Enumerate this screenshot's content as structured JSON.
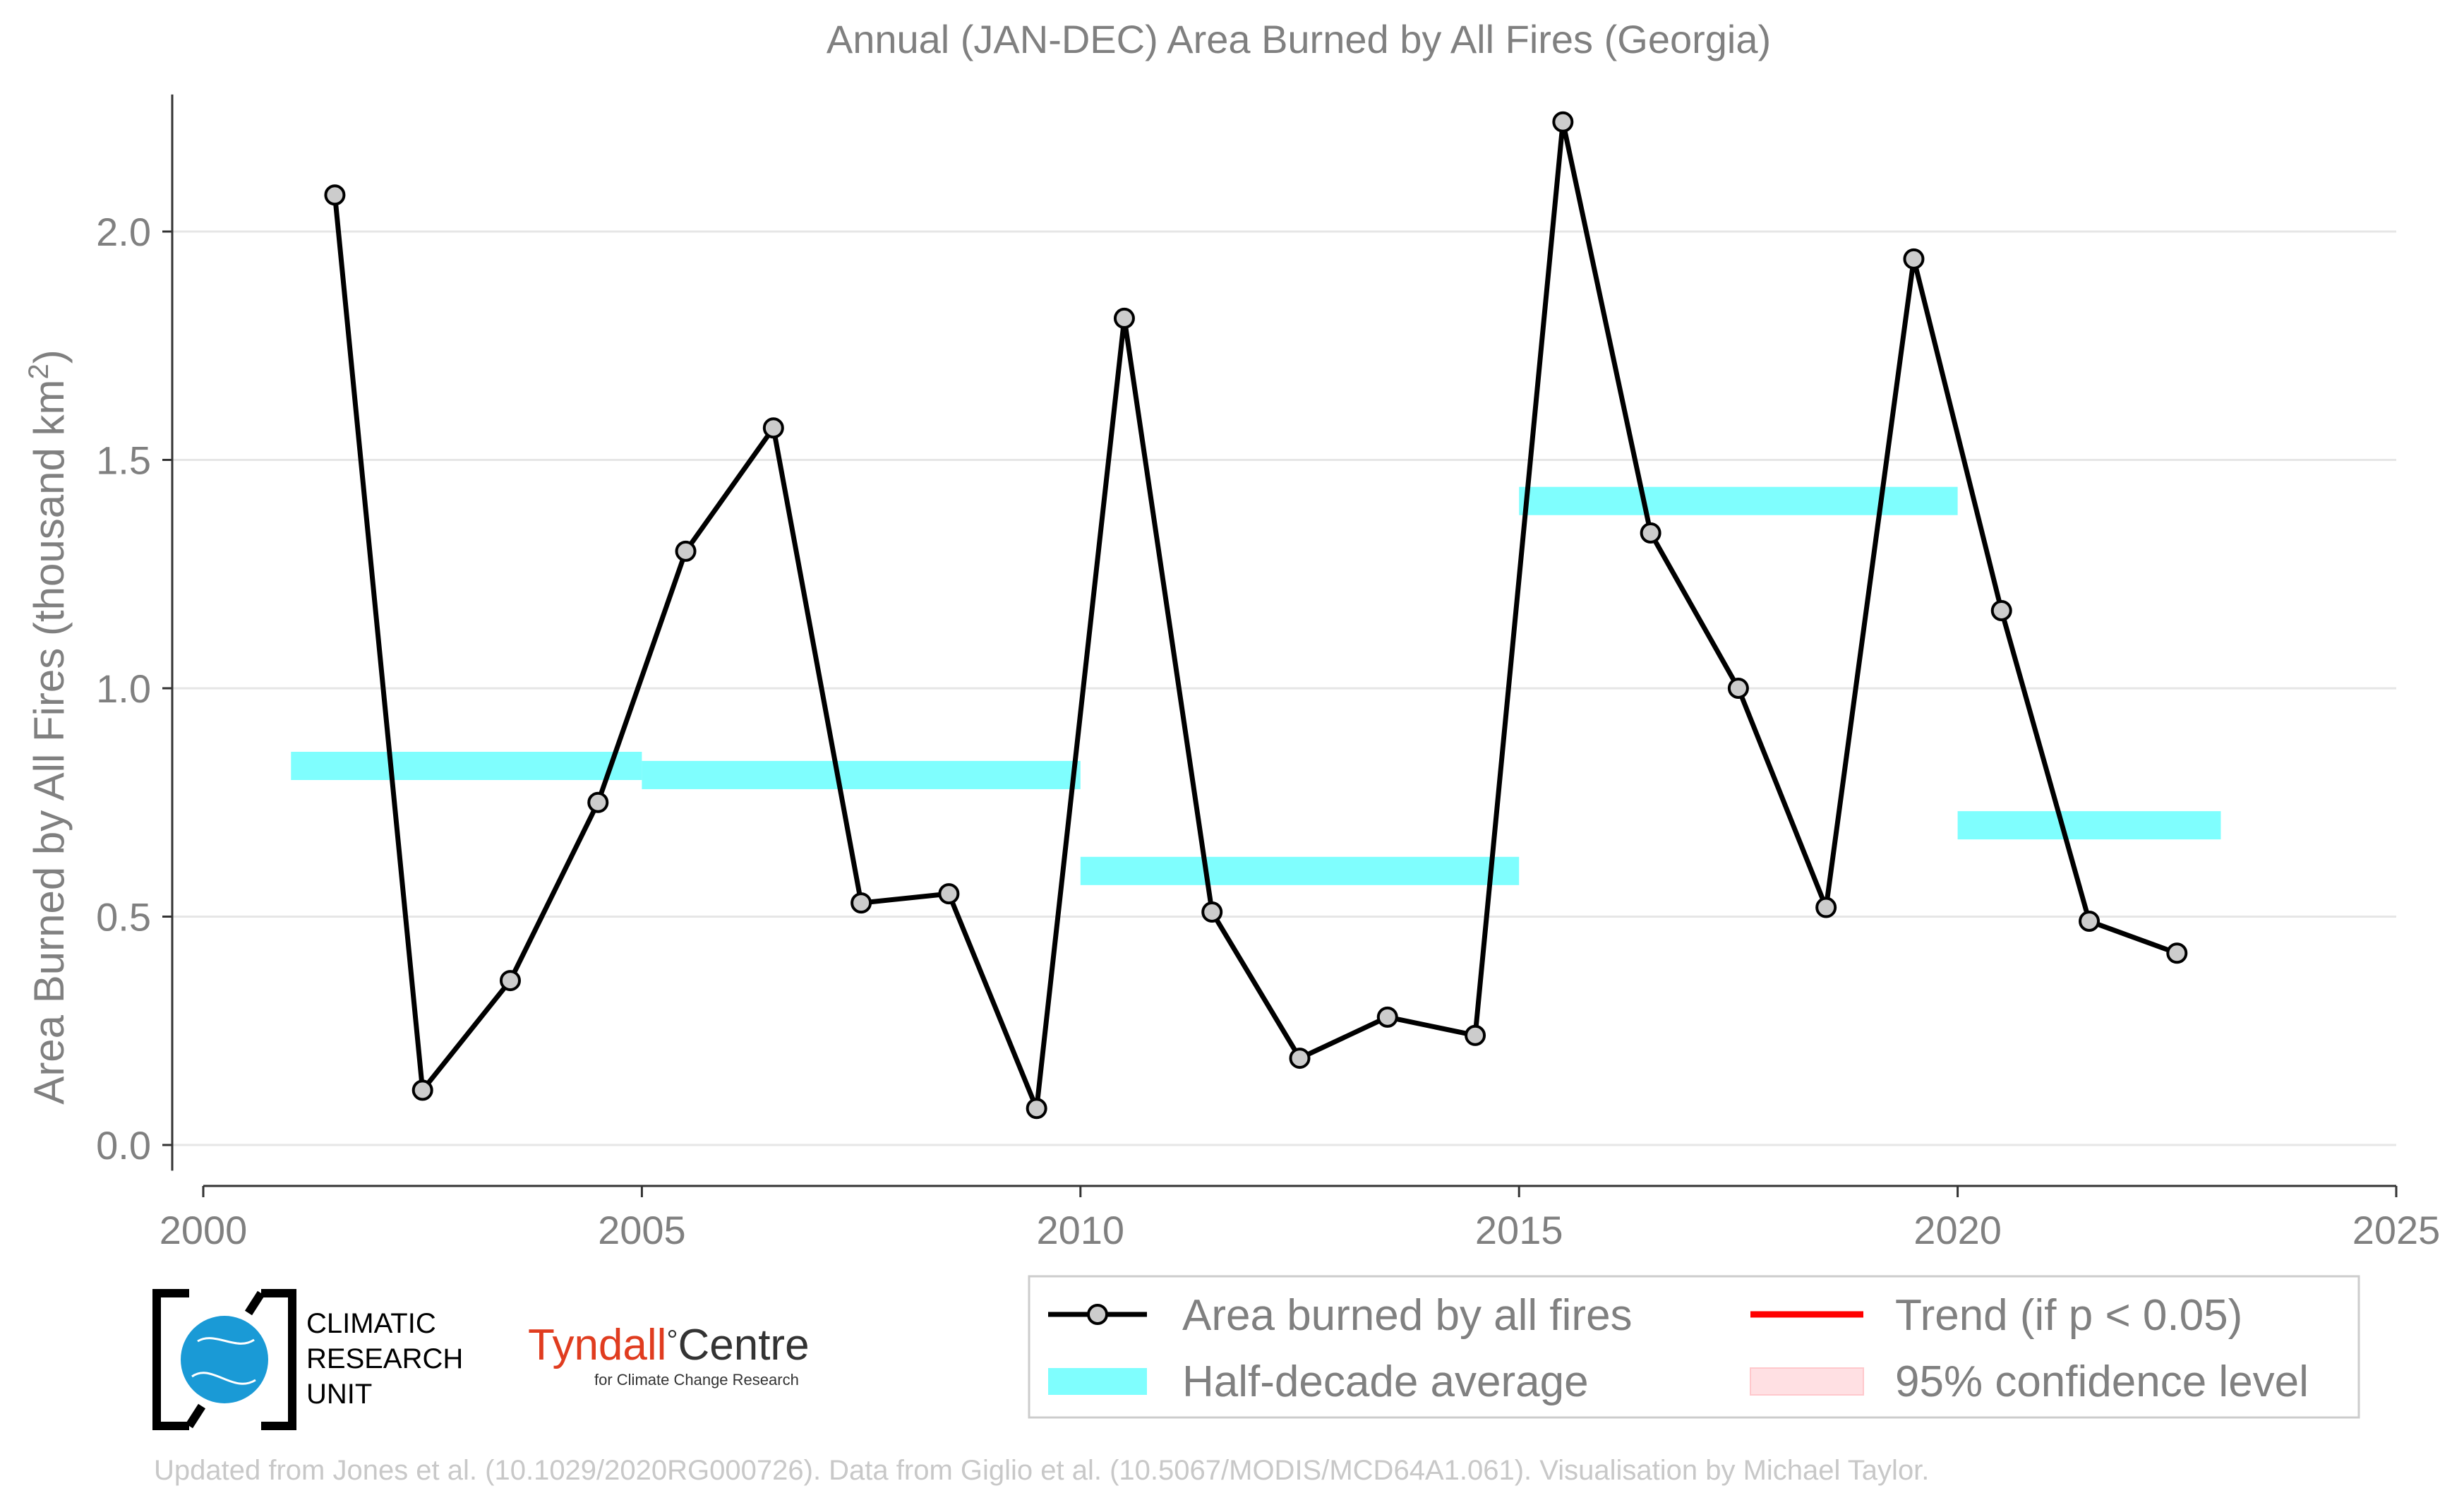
{
  "chart_data": {
    "type": "line",
    "title": "Annual (JAN-DEC) Area Burned by All Fires (Georgia)",
    "ylabel_main": "Area Burned by All Fires (thousand km",
    "ylabel_sup": "2",
    "ylabel_end": ")",
    "xlim": [
      2000,
      2025
    ],
    "ylim": [
      -0.05,
      2.3
    ],
    "xticks": [
      2000,
      2005,
      2010,
      2015,
      2020,
      2025
    ],
    "yticks": [
      0.0,
      0.5,
      1.0,
      1.5,
      2.0
    ],
    "ytick_labels": [
      "0.0",
      "0.5",
      "1.0",
      "1.5",
      "2.0"
    ],
    "grid": "horizontal",
    "series": [
      {
        "name": "Area burned by all fires",
        "color": "#000000",
        "marker_fill": "#cccccc",
        "x": [
          2001.5,
          2002.5,
          2003.5,
          2004.5,
          2005.5,
          2006.5,
          2007.5,
          2008.5,
          2009.5,
          2010.5,
          2011.5,
          2012.5,
          2013.5,
          2014.5,
          2015.5,
          2016.5,
          2017.5,
          2018.5,
          2019.5,
          2020.5,
          2021.5,
          2022.5
        ],
        "y": [
          2.08,
          0.12,
          0.36,
          0.75,
          1.3,
          1.57,
          0.53,
          0.55,
          0.08,
          1.81,
          0.51,
          0.19,
          0.28,
          0.24,
          2.24,
          1.34,
          1.0,
          0.52,
          1.94,
          1.17,
          0.49,
          0.42
        ]
      }
    ],
    "half_decade_average": {
      "name": "Half-decade average",
      "color": "#7ffefe",
      "segments": [
        {
          "x_start": 2001,
          "x_end": 2005,
          "value": 0.83
        },
        {
          "x_start": 2005,
          "x_end": 2010,
          "value": 0.81
        },
        {
          "x_start": 2010,
          "x_end": 2015,
          "value": 0.6
        },
        {
          "x_start": 2015,
          "x_end": 2020,
          "value": 1.41
        },
        {
          "x_start": 2020,
          "x_end": 2023,
          "value": 0.7
        }
      ]
    },
    "legend": [
      {
        "label": "Area burned by all fires",
        "kind": "line-marker",
        "color": "#000000"
      },
      {
        "label": "Trend (if p < 0.05)",
        "kind": "line",
        "color": "#ff0000"
      },
      {
        "label": "Half-decade average",
        "kind": "band",
        "color": "#7ffefe"
      },
      {
        "label": "95% confidence level",
        "kind": "band",
        "color": "#ffe0e3"
      }
    ],
    "legend_position": "bottom-right",
    "footnote": "Updated from Jones et al. (10.1029/2020RG000726). Data from Giglio et al. (10.5067/MODIS/MCD64A1.061). Visualisation by Michael Taylor."
  },
  "logos": {
    "cru_lines": [
      "CLIMATIC",
      "RESEARCH",
      "UNIT"
    ],
    "tyndall_name": "Tyndall",
    "tyndall_degree": "°",
    "tyndall_centre": "Centre",
    "tyndall_sub": "for Climate Change Research",
    "cru_globe_color": "#1a9ad6",
    "tyndall_red": "#e03c1f"
  }
}
